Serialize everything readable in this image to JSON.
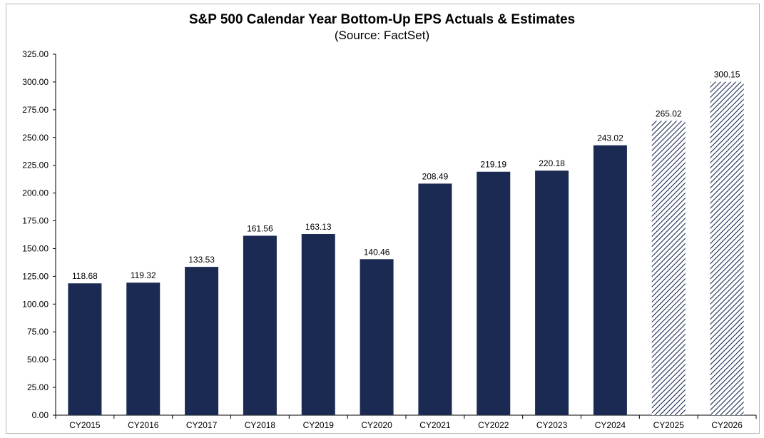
{
  "chart_data": {
    "type": "bar",
    "title": "S&P 500 Calendar Year Bottom-Up EPS Actuals & Estimates",
    "subtitle": "(Source: FactSet)",
    "categories": [
      "CY2015",
      "CY2016",
      "CY2017",
      "CY2018",
      "CY2019",
      "CY2020",
      "CY2021",
      "CY2022",
      "CY2023",
      "CY2024",
      "CY2025",
      "CY2026"
    ],
    "values": [
      118.68,
      119.32,
      133.53,
      161.56,
      163.13,
      140.46,
      208.49,
      219.19,
      220.18,
      243.02,
      265.02,
      300.15
    ],
    "value_labels": [
      "118.68",
      "119.32",
      "133.53",
      "161.56",
      "163.13",
      "140.46",
      "208.49",
      "219.19",
      "220.18",
      "243.02",
      "265.02",
      "300.15"
    ],
    "bar_style": [
      "solid",
      "solid",
      "solid",
      "solid",
      "solid",
      "solid",
      "solid",
      "solid",
      "solid",
      "solid",
      "hatched",
      "hatched"
    ],
    "ylim": [
      0,
      325
    ],
    "y_ticks": [
      "0.00",
      "25.00",
      "50.00",
      "75.00",
      "100.00",
      "125.00",
      "150.00",
      "175.00",
      "200.00",
      "225.00",
      "250.00",
      "275.00",
      "300.00",
      "325.00"
    ],
    "grid": false,
    "colors": {
      "bar": "#1b2a52",
      "hatch": "#1b2a52",
      "axis": "#000000"
    }
  }
}
